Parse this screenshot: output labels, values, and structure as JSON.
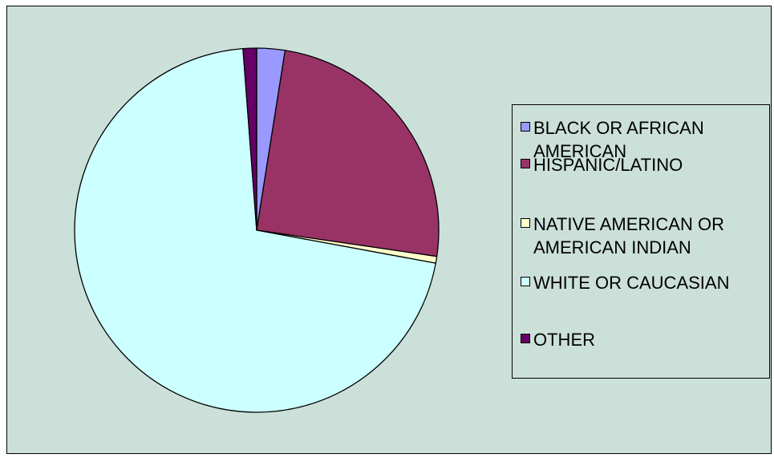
{
  "chart_data": {
    "type": "pie",
    "categories": [
      "BLACK OR AFRICAN AMERICAN",
      "HISPANIC/LATINO",
      "NATIVE AMERICAN OR AMERICAN INDIAN",
      "WHITE OR CAUCASIAN",
      "OTHER"
    ],
    "values": [
      2.5,
      24.8,
      0.6,
      70.9,
      1.2
    ],
    "colors": [
      "#9999ff",
      "#993366",
      "#ffffcc",
      "#ccffff",
      "#660066"
    ],
    "title": "",
    "legend_position": "right",
    "start_angle_deg": 0,
    "direction": "clockwise"
  },
  "legend": {
    "items": [
      {
        "label": "BLACK OR AFRICAN AMERICAN",
        "color": "#9999ff"
      },
      {
        "label": "HISPANIC/LATINO",
        "color": "#993366"
      },
      {
        "label": "NATIVE AMERICAN OR AMERICAN INDIAN",
        "color": "#ffffcc"
      },
      {
        "label": "WHITE OR CAUCASIAN",
        "color": "#ccffff"
      },
      {
        "label": "OTHER",
        "color": "#660066"
      }
    ]
  },
  "colors": {
    "plot_background": "#cce0da",
    "border": "#000000"
  }
}
